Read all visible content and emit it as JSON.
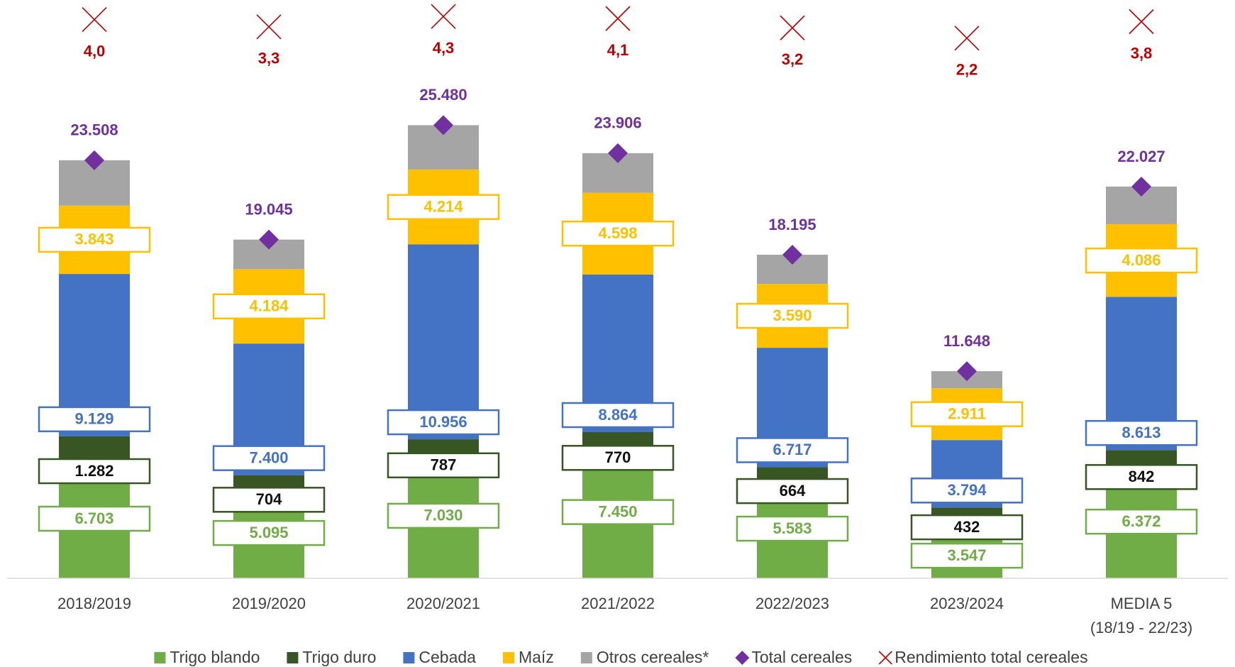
{
  "chart_data": {
    "type": "bar",
    "stacked": true,
    "categories": [
      "2018/2019",
      "2019/2020",
      "2020/2021",
      "2021/2022",
      "2022/2023",
      "2023/2024",
      "MEDIA 5\n(18/19 - 22/23)"
    ],
    "ylim": [
      0,
      32000
    ],
    "y2lim": [
      -50,
      5
    ],
    "series": [
      {
        "name": "Trigo blando",
        "color": "#70ad47",
        "values": [
          6703,
          5095,
          7030,
          7450,
          5583,
          3547,
          6372
        ],
        "value_labels": [
          "6.703",
          "5.095",
          "7.030",
          "7.450",
          "5.583",
          "3.547",
          "6.372"
        ]
      },
      {
        "name": "Trigo duro",
        "color": "#375623",
        "values": [
          1282,
          704,
          787,
          770,
          664,
          432,
          842
        ],
        "value_labels": [
          "1.282",
          "704",
          "787",
          "770",
          "664",
          "432",
          "842"
        ]
      },
      {
        "name": "Cebada",
        "color": "#4472c4",
        "values": [
          9129,
          7400,
          10956,
          8864,
          6717,
          3794,
          8613
        ],
        "value_labels": [
          "9.129",
          "7.400",
          "10.956",
          "8.864",
          "6.717",
          "3.794",
          "8.613"
        ]
      },
      {
        "name": "Maíz",
        "color": "#ffc000",
        "values": [
          3843,
          4184,
          4214,
          4598,
          3590,
          2911,
          4086
        ],
        "value_labels": [
          "3.843",
          "4.184",
          "4.214",
          "4.598",
          "3.590",
          "2.911",
          "4.086"
        ]
      },
      {
        "name": "Otros cereales*",
        "color": "#a5a5a5",
        "values": [
          2551,
          1662,
          2493,
          2224,
          1641,
          964,
          2114
        ]
      },
      {
        "name": "Total cereales",
        "color": "#7030a0",
        "marker": "diamond",
        "values": [
          23508,
          19045,
          25480,
          23906,
          18195,
          11648,
          22027
        ],
        "value_labels": [
          "23.508",
          "19.045",
          "25.480",
          "23.906",
          "18.195",
          "11.648",
          "22.027"
        ]
      },
      {
        "name": "Rendimiento total cereales",
        "color": "#c00000",
        "marker": "x",
        "axis": "y2",
        "values": [
          4.0,
          3.3,
          4.3,
          4.1,
          3.2,
          2.2,
          3.8
        ],
        "value_labels": [
          "4,0",
          "3,3",
          "4,3",
          "4,1",
          "3,2",
          "2,2",
          "3,8"
        ]
      }
    ]
  }
}
